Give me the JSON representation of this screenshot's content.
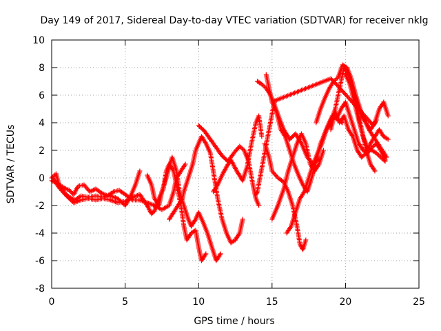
{
  "chart_data": {
    "type": "scatter",
    "title": "Day 149 of 2017, Sidereal Day-to-day VTEC variation (SDTVAR) for receiver nklg",
    "xlabel": "GPS time / hours",
    "ylabel": "SDTVAR / TECUs",
    "xlim": [
      0,
      25
    ],
    "ylim": [
      -8,
      10
    ],
    "xticks": [
      "0",
      "5",
      "10",
      "15",
      "20",
      "25"
    ],
    "yticks": [
      "-8",
      "-6",
      "-4",
      "-2",
      "0",
      "2",
      "4",
      "6",
      "8",
      "10"
    ],
    "grid": true,
    "marker": "+",
    "color": "#ff0000",
    "series": [
      {
        "points": [
          [
            0.0,
            0.0
          ],
          [
            0.3,
            0.3
          ],
          [
            0.5,
            -0.5
          ],
          [
            0.8,
            -1.0
          ],
          [
            1.2,
            -1.4
          ],
          [
            1.6,
            -1.6
          ],
          [
            2.0,
            -1.3
          ],
          [
            2.5,
            -1.4
          ],
          [
            3.0,
            -1.3
          ],
          [
            3.5,
            -1.4
          ],
          [
            4.0,
            -1.3
          ],
          [
            4.5,
            -1.5
          ],
          [
            5.0,
            -2.0
          ],
          [
            5.3,
            -1.5
          ],
          [
            5.7,
            -0.5
          ],
          [
            6.0,
            0.5
          ]
        ]
      },
      {
        "points": [
          [
            0.0,
            -0.2
          ],
          [
            0.4,
            -0.4
          ],
          [
            0.8,
            -0.7
          ],
          [
            1.2,
            -0.9
          ],
          [
            1.5,
            -1.2
          ],
          [
            1.8,
            -0.6
          ],
          [
            2.2,
            -0.5
          ],
          [
            2.6,
            -1.0
          ],
          [
            3.0,
            -0.8
          ],
          [
            3.4,
            -1.1
          ],
          [
            3.8,
            -1.3
          ],
          [
            4.2,
            -1.0
          ],
          [
            4.6,
            -0.9
          ],
          [
            5.0,
            -1.2
          ],
          [
            5.5,
            -1.6
          ],
          [
            6.0,
            -1.6
          ],
          [
            6.5,
            -1.8
          ],
          [
            7.0,
            -2.0
          ],
          [
            7.5,
            -2.3
          ],
          [
            8.0,
            -2.0
          ],
          [
            8.3,
            -1.0
          ],
          [
            8.5,
            0.0
          ],
          [
            8.8,
            0.5
          ],
          [
            9.1,
            1.0
          ]
        ]
      },
      {
        "points": [
          [
            0.1,
            0.0
          ],
          [
            0.5,
            -0.7
          ],
          [
            1.0,
            -1.3
          ],
          [
            1.5,
            -1.8
          ],
          [
            2.0,
            -1.6
          ],
          [
            2.5,
            -1.5
          ],
          [
            3.0,
            -1.6
          ],
          [
            3.5,
            -1.5
          ],
          [
            4.0,
            -1.6
          ],
          [
            4.5,
            -1.8
          ],
          [
            5.0,
            -1.7
          ],
          [
            5.5,
            -1.4
          ],
          [
            6.0,
            -1.2
          ],
          [
            6.5,
            -2.0
          ],
          [
            6.8,
            -2.6
          ],
          [
            7.0,
            -2.4
          ],
          [
            7.3,
            -1.5
          ],
          [
            7.6,
            -0.8
          ],
          [
            7.8,
            0.5
          ],
          [
            8.0,
            1.0
          ],
          [
            8.3,
            0.5
          ],
          [
            8.5,
            -0.5
          ],
          [
            8.8,
            -2.0
          ],
          [
            9.0,
            -3.5
          ],
          [
            9.2,
            -4.5
          ],
          [
            9.5,
            -4.0
          ],
          [
            9.8,
            -3.8
          ],
          [
            10.0,
            -5.0
          ],
          [
            10.2,
            -6.0
          ],
          [
            10.5,
            -5.5
          ]
        ]
      },
      {
        "points": [
          [
            6.5,
            0.2
          ],
          [
            6.8,
            -0.5
          ],
          [
            7.0,
            -1.5
          ],
          [
            7.3,
            -2.0
          ],
          [
            7.5,
            -1.0
          ],
          [
            7.8,
            0.0
          ],
          [
            8.0,
            0.8
          ],
          [
            8.2,
            1.5
          ],
          [
            8.5,
            0.5
          ],
          [
            8.7,
            -1.0
          ],
          [
            9.0,
            -2.0
          ],
          [
            9.3,
            -3.0
          ],
          [
            9.5,
            -3.5
          ],
          [
            9.8,
            -3.0
          ],
          [
            10.0,
            -2.5
          ],
          [
            10.3,
            -3.2
          ],
          [
            10.6,
            -4.0
          ],
          [
            10.9,
            -5.0
          ],
          [
            11.2,
            -6.0
          ],
          [
            11.5,
            -5.5
          ]
        ]
      },
      {
        "points": [
          [
            8.0,
            -3.0
          ],
          [
            8.3,
            -2.5
          ],
          [
            8.6,
            -2.0
          ],
          [
            8.9,
            -1.5
          ],
          [
            9.0,
            -1.0
          ],
          [
            9.3,
            0.0
          ],
          [
            9.6,
            1.0
          ],
          [
            9.8,
            2.0
          ],
          [
            10.0,
            2.5
          ],
          [
            10.2,
            3.0
          ],
          [
            10.5,
            2.5
          ],
          [
            10.8,
            1.8
          ],
          [
            11.0,
            0.5
          ],
          [
            11.3,
            -1.5
          ],
          [
            11.6,
            -3.0
          ],
          [
            11.9,
            -4.0
          ],
          [
            12.2,
            -4.7
          ],
          [
            12.5,
            -4.5
          ],
          [
            12.8,
            -4.0
          ],
          [
            13.0,
            -3.0
          ]
        ]
      },
      {
        "points": [
          [
            10.0,
            3.8
          ],
          [
            10.4,
            3.4
          ],
          [
            10.8,
            2.8
          ],
          [
            11.2,
            2.2
          ],
          [
            11.6,
            1.6
          ],
          [
            12.0,
            1.2
          ],
          [
            12.4,
            1.8
          ],
          [
            12.8,
            2.3
          ],
          [
            13.1,
            2.0
          ],
          [
            13.4,
            1.2
          ],
          [
            13.7,
            -0.5
          ],
          [
            13.9,
            -1.5
          ],
          [
            14.1,
            -2.0
          ]
        ]
      },
      {
        "points": [
          [
            11.0,
            -1.0
          ],
          [
            11.3,
            -0.5
          ],
          [
            11.6,
            0.2
          ],
          [
            11.9,
            0.8
          ],
          [
            12.2,
            1.3
          ],
          [
            12.6,
            0.5
          ],
          [
            13.0,
            -0.2
          ],
          [
            13.3,
            0.8
          ],
          [
            13.6,
            2.5
          ],
          [
            13.9,
            4.0
          ],
          [
            14.1,
            4.5
          ],
          [
            14.3,
            3.0
          ]
        ]
      },
      {
        "points": [
          [
            14.0,
            7.0
          ],
          [
            14.3,
            6.8
          ],
          [
            14.6,
            6.5
          ],
          [
            14.9,
            6.0
          ],
          [
            15.2,
            5.2
          ],
          [
            15.5,
            4.3
          ],
          [
            15.8,
            3.5
          ],
          [
            16.2,
            2.8
          ],
          [
            16.6,
            3.2
          ],
          [
            17.0,
            2.5
          ],
          [
            17.4,
            1.5
          ],
          [
            17.8,
            1.0
          ],
          [
            18.2,
            1.4
          ]
        ]
      },
      {
        "points": [
          [
            14.6,
            7.5
          ],
          [
            14.8,
            6.5
          ],
          [
            15.0,
            5.5
          ],
          [
            15.3,
            4.8
          ],
          [
            15.6,
            3.5
          ],
          [
            15.9,
            3.0
          ],
          [
            16.2,
            2.0
          ],
          [
            16.5,
            1.0
          ],
          [
            16.8,
            0.2
          ],
          [
            17.1,
            -0.5
          ],
          [
            17.4,
            -1.0
          ],
          [
            17.7,
            0.0
          ],
          [
            18.0,
            1.2
          ],
          [
            18.3,
            2.5
          ],
          [
            18.6,
            3.2
          ],
          [
            18.9,
            4.0
          ],
          [
            19.2,
            4.5
          ],
          [
            19.5,
            4.2
          ],
          [
            19.8,
            4.0
          ]
        ]
      },
      {
        "points": [
          [
            14.5,
            2.5
          ],
          [
            14.8,
            1.5
          ],
          [
            15.0,
            0.5
          ],
          [
            15.4,
            0.0
          ],
          [
            15.8,
            -0.3
          ],
          [
            16.1,
            -1.0
          ],
          [
            16.4,
            -2.0
          ],
          [
            16.7,
            -3.5
          ],
          [
            16.9,
            -4.8
          ],
          [
            17.1,
            -5.2
          ],
          [
            17.3,
            -4.5
          ]
        ]
      },
      {
        "points": [
          [
            15.0,
            -3.0
          ],
          [
            15.4,
            -2.0
          ],
          [
            15.8,
            -0.8
          ],
          [
            16.1,
            0.5
          ],
          [
            16.4,
            1.5
          ],
          [
            16.7,
            2.5
          ],
          [
            17.0,
            3.2
          ],
          [
            17.3,
            2.5
          ],
          [
            17.6,
            1.0
          ],
          [
            17.9,
            0.5
          ],
          [
            18.2,
            1.0
          ],
          [
            18.5,
            2.0
          ]
        ]
      },
      {
        "points": [
          [
            16.0,
            -4.0
          ],
          [
            16.3,
            -3.5
          ],
          [
            16.6,
            -2.5
          ],
          [
            16.9,
            -1.5
          ],
          [
            17.2,
            -1.0
          ],
          [
            17.5,
            0.0
          ],
          [
            17.8,
            1.0
          ],
          [
            18.1,
            1.8
          ],
          [
            18.4,
            2.5
          ],
          [
            18.7,
            3.5
          ],
          [
            19.0,
            4.0
          ],
          [
            19.3,
            5.0
          ],
          [
            19.6,
            6.5
          ],
          [
            19.9,
            8.0
          ],
          [
            20.2,
            7.5
          ],
          [
            20.5,
            6.5
          ],
          [
            20.8,
            5.0
          ],
          [
            21.1,
            3.5
          ],
          [
            21.4,
            2.0
          ],
          [
            21.7,
            1.0
          ],
          [
            22.0,
            0.5
          ]
        ]
      },
      {
        "points": [
          [
            18.0,
            4.0
          ],
          [
            18.3,
            5.0
          ],
          [
            18.6,
            5.8
          ],
          [
            18.9,
            6.5
          ],
          [
            19.2,
            7.0
          ],
          [
            19.5,
            7.3
          ],
          [
            19.8,
            8.2
          ],
          [
            20.1,
            8.0
          ],
          [
            20.4,
            7.2
          ],
          [
            20.7,
            6.0
          ],
          [
            21.0,
            5.0
          ],
          [
            21.3,
            4.2
          ],
          [
            21.6,
            3.5
          ],
          [
            21.9,
            3.0
          ],
          [
            22.2,
            2.5
          ],
          [
            22.5,
            2.0
          ],
          [
            22.8,
            1.5
          ]
        ]
      },
      {
        "points": [
          [
            18.5,
            3.0
          ],
          [
            18.8,
            3.8
          ],
          [
            19.1,
            4.5
          ],
          [
            19.4,
            4.3
          ],
          [
            19.7,
            5.0
          ],
          [
            20.0,
            5.5
          ],
          [
            20.3,
            4.5
          ],
          [
            20.6,
            3.5
          ],
          [
            20.9,
            2.5
          ],
          [
            21.2,
            2.0
          ],
          [
            21.5,
            1.8
          ],
          [
            21.8,
            2.2
          ],
          [
            22.1,
            2.5
          ],
          [
            22.4,
            2.0
          ],
          [
            22.7,
            1.3
          ]
        ]
      },
      {
        "points": [
          [
            19.0,
            3.5
          ],
          [
            19.3,
            4.8
          ],
          [
            19.6,
            4.0
          ],
          [
            19.9,
            4.5
          ],
          [
            20.2,
            3.5
          ],
          [
            20.5,
            3.0
          ],
          [
            20.8,
            2.0
          ],
          [
            21.1,
            1.5
          ],
          [
            21.4,
            1.8
          ],
          [
            21.7,
            2.5
          ],
          [
            22.0,
            3.0
          ],
          [
            22.3,
            3.5
          ],
          [
            22.6,
            3.0
          ],
          [
            22.9,
            2.8
          ]
        ]
      },
      {
        "points": [
          [
            20.5,
            6.5
          ],
          [
            20.8,
            5.5
          ],
          [
            21.1,
            4.5
          ],
          [
            21.4,
            4.0
          ],
          [
            21.7,
            3.5
          ],
          [
            22.0,
            4.0
          ],
          [
            22.3,
            5.0
          ],
          [
            22.6,
            5.5
          ],
          [
            22.9,
            4.5
          ]
        ]
      },
      {
        "points": [
          [
            20.0,
            7.5
          ],
          [
            20.3,
            6.8
          ],
          [
            20.6,
            5.5
          ],
          [
            20.9,
            4.2
          ],
          [
            21.2,
            3.0
          ],
          [
            21.5,
            2.2
          ],
          [
            21.8,
            2.0
          ],
          [
            22.1,
            1.8
          ],
          [
            22.4,
            1.5
          ],
          [
            22.7,
            1.2
          ]
        ]
      },
      {
        "points": [
          [
            13.9,
            -1.2
          ],
          [
            14.0,
            -1.0
          ],
          [
            15.1,
            5.2
          ],
          [
            15.2,
            5.6
          ],
          [
            19.0,
            7.2
          ],
          [
            19.2,
            7.0
          ],
          [
            21.9,
            3.8
          ],
          [
            22.1,
            4.2
          ]
        ]
      }
    ]
  }
}
